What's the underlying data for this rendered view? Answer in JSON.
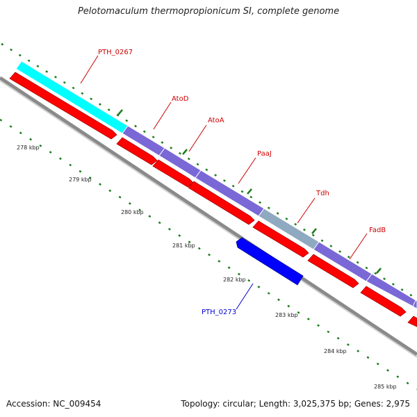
{
  "header": {
    "title": "Pelotomaculum thermopropionicum SI, complete genome"
  },
  "footer": {
    "accession": "Accession: NC_009454",
    "summary": "Topology: circular; Length: 3,025,375 bp; Genes: 2,975"
  },
  "colors": {
    "tick": "#1c7d1c",
    "backbone": "#8a8a8a",
    "cds_forward": "#ff0000",
    "gene_bar": "#7a68d6",
    "gene_highlight": "#00ffff",
    "gene_tdh": "#8fa9c0",
    "cds_reverse": "#0000ff",
    "label_forward": "#cc0000",
    "label_reverse": "#0000cc"
  },
  "scale_labels": [
    "278 kbp",
    "279 kbp",
    "280 kbp",
    "281 kbp",
    "282 kbp",
    "283 kbp",
    "284 kbp",
    "285 kbp"
  ],
  "genes": [
    {
      "name": "PTH_0267",
      "strand": "forward"
    },
    {
      "name": "AtoD",
      "strand": "forward"
    },
    {
      "name": "AtoA",
      "strand": "forward"
    },
    {
      "name": "PaaJ",
      "strand": "forward"
    },
    {
      "name": "Tdh",
      "strand": "forward"
    },
    {
      "name": "FadB",
      "strand": "forward"
    },
    {
      "name": "PTH_0273",
      "strand": "reverse"
    }
  ]
}
